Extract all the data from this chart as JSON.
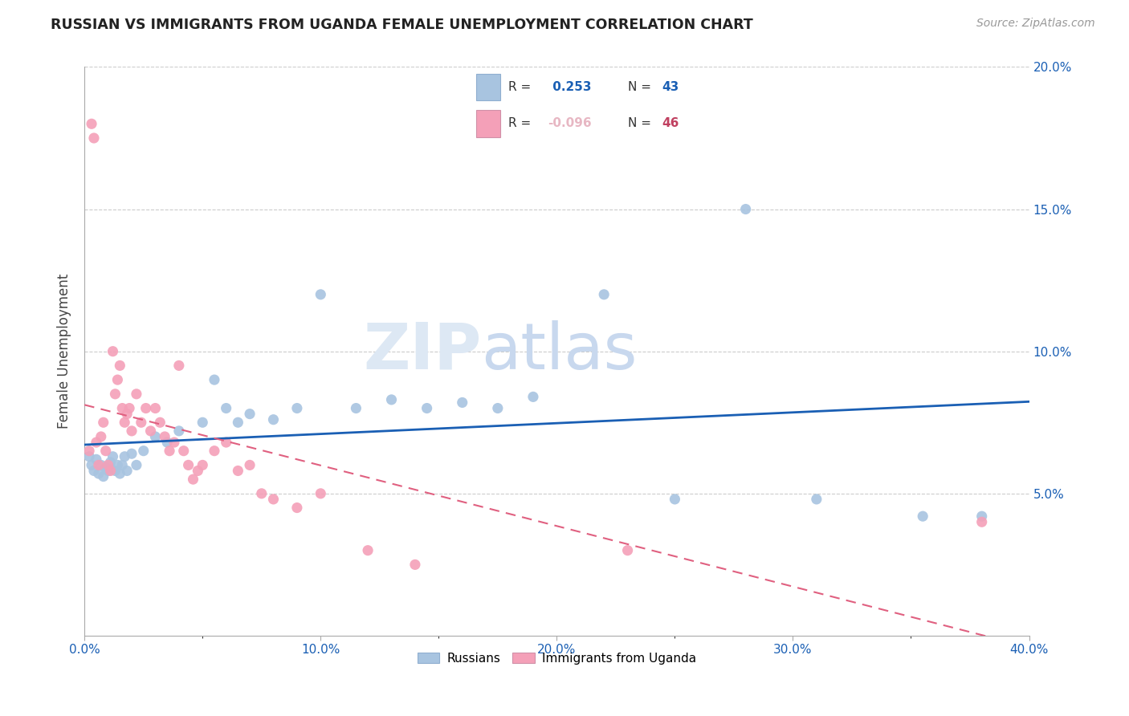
{
  "title": "RUSSIAN VS IMMIGRANTS FROM UGANDA FEMALE UNEMPLOYMENT CORRELATION CHART",
  "source": "Source: ZipAtlas.com",
  "ylabel": "Female Unemployment",
  "xlim": [
    0.0,
    0.4
  ],
  "ylim": [
    0.0,
    0.2
  ],
  "xtick_labels": [
    "0.0%",
    "",
    "10.0%",
    "",
    "20.0%",
    "",
    "30.0%",
    "",
    "40.0%"
  ],
  "xtick_vals": [
    0.0,
    0.05,
    0.1,
    0.15,
    0.2,
    0.25,
    0.3,
    0.35,
    0.4
  ],
  "ytick_labels": [
    "5.0%",
    "10.0%",
    "15.0%",
    "20.0%"
  ],
  "ytick_vals": [
    0.05,
    0.1,
    0.15,
    0.2
  ],
  "russian_R": 0.253,
  "russian_N": 43,
  "uganda_R": -0.096,
  "uganda_N": 46,
  "russian_color": "#a8c4e0",
  "uganda_color": "#f4a0b8",
  "russian_line_color": "#1a5fb4",
  "uganda_line_color": "#e06080",
  "watermark_zip": "ZIP",
  "watermark_atlas": "atlas",
  "russian_x": [
    0.002,
    0.003,
    0.004,
    0.005,
    0.006,
    0.007,
    0.008,
    0.009,
    0.01,
    0.011,
    0.012,
    0.013,
    0.014,
    0.015,
    0.016,
    0.017,
    0.018,
    0.02,
    0.022,
    0.025,
    0.03,
    0.035,
    0.04,
    0.05,
    0.055,
    0.06,
    0.065,
    0.07,
    0.08,
    0.09,
    0.1,
    0.115,
    0.13,
    0.145,
    0.16,
    0.175,
    0.19,
    0.22,
    0.25,
    0.28,
    0.31,
    0.355,
    0.38
  ],
  "russian_y": [
    0.063,
    0.06,
    0.058,
    0.062,
    0.057,
    0.06,
    0.056,
    0.059,
    0.058,
    0.061,
    0.063,
    0.058,
    0.06,
    0.057,
    0.06,
    0.063,
    0.058,
    0.064,
    0.06,
    0.065,
    0.07,
    0.068,
    0.072,
    0.075,
    0.09,
    0.08,
    0.075,
    0.078,
    0.076,
    0.08,
    0.12,
    0.08,
    0.083,
    0.08,
    0.082,
    0.08,
    0.084,
    0.12,
    0.048,
    0.15,
    0.048,
    0.042,
    0.042
  ],
  "uganda_x": [
    0.002,
    0.003,
    0.004,
    0.005,
    0.006,
    0.007,
    0.008,
    0.009,
    0.01,
    0.011,
    0.012,
    0.013,
    0.014,
    0.015,
    0.016,
    0.017,
    0.018,
    0.019,
    0.02,
    0.022,
    0.024,
    0.026,
    0.028,
    0.03,
    0.032,
    0.034,
    0.036,
    0.038,
    0.04,
    0.042,
    0.044,
    0.046,
    0.048,
    0.05,
    0.055,
    0.06,
    0.065,
    0.07,
    0.075,
    0.08,
    0.09,
    0.1,
    0.12,
    0.14,
    0.23,
    0.38
  ],
  "uganda_y": [
    0.065,
    0.18,
    0.175,
    0.068,
    0.06,
    0.07,
    0.075,
    0.065,
    0.06,
    0.058,
    0.1,
    0.085,
    0.09,
    0.095,
    0.08,
    0.075,
    0.078,
    0.08,
    0.072,
    0.085,
    0.075,
    0.08,
    0.072,
    0.08,
    0.075,
    0.07,
    0.065,
    0.068,
    0.095,
    0.065,
    0.06,
    0.055,
    0.058,
    0.06,
    0.065,
    0.068,
    0.058,
    0.06,
    0.05,
    0.048,
    0.045,
    0.05,
    0.03,
    0.025,
    0.03,
    0.04
  ]
}
